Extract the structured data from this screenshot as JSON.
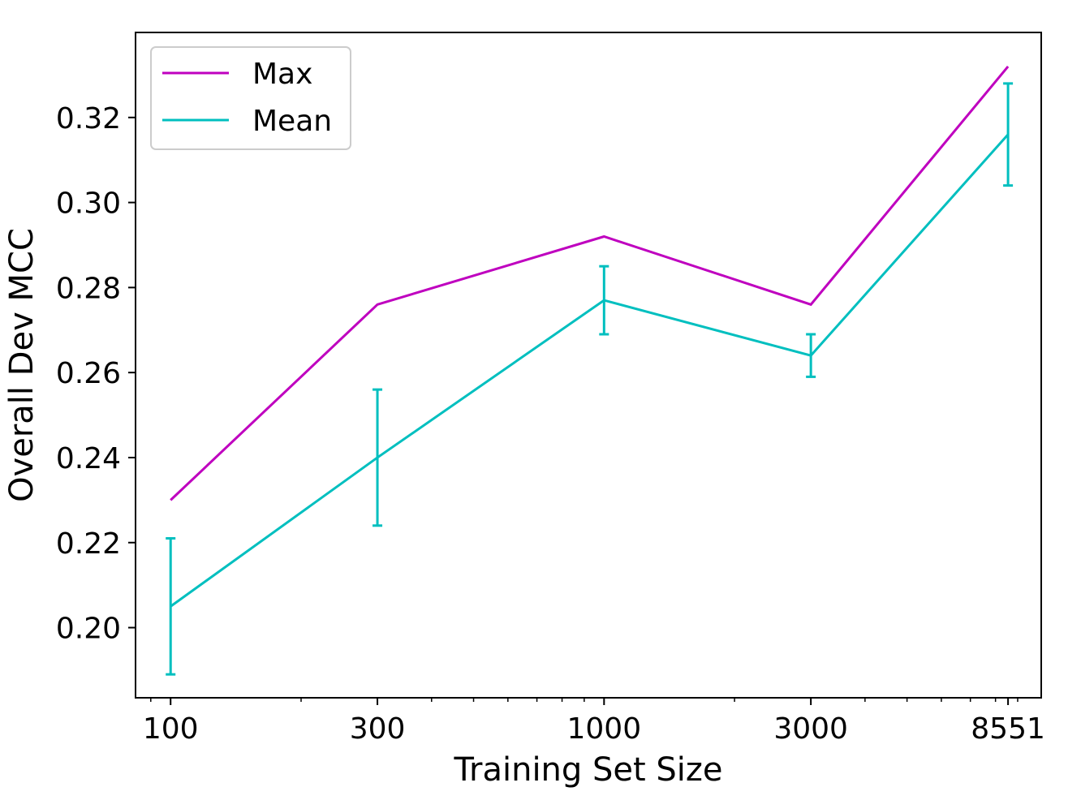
{
  "chart_data": {
    "type": "line",
    "x_scale": "log",
    "x": [
      100,
      300,
      1000,
      3000,
      8551
    ],
    "x_tick_labels": [
      "100",
      "300",
      "1000",
      "3000",
      "8551"
    ],
    "y_ticks": [
      0.2,
      0.22,
      0.24,
      0.26,
      0.28,
      0.3,
      0.32
    ],
    "y_tick_labels": [
      "0.20",
      "0.22",
      "0.24",
      "0.26",
      "0.28",
      "0.30",
      "0.32"
    ],
    "xlabel": "Training Set Size",
    "ylabel": "Overall Dev MCC",
    "xlim": [
      83,
      10200
    ],
    "ylim": [
      0.1835,
      0.34
    ],
    "grid": false,
    "legend_position": "top-left",
    "series": [
      {
        "name": "Max",
        "color": "#bf00bf",
        "values": [
          0.23,
          0.276,
          0.292,
          0.276,
          0.332
        ]
      },
      {
        "name": "Mean",
        "color": "#00bfbf",
        "values": [
          0.205,
          0.24,
          0.277,
          0.264,
          0.316
        ],
        "error": [
          0.016,
          0.016,
          0.008,
          0.005,
          0.012
        ]
      }
    ]
  }
}
